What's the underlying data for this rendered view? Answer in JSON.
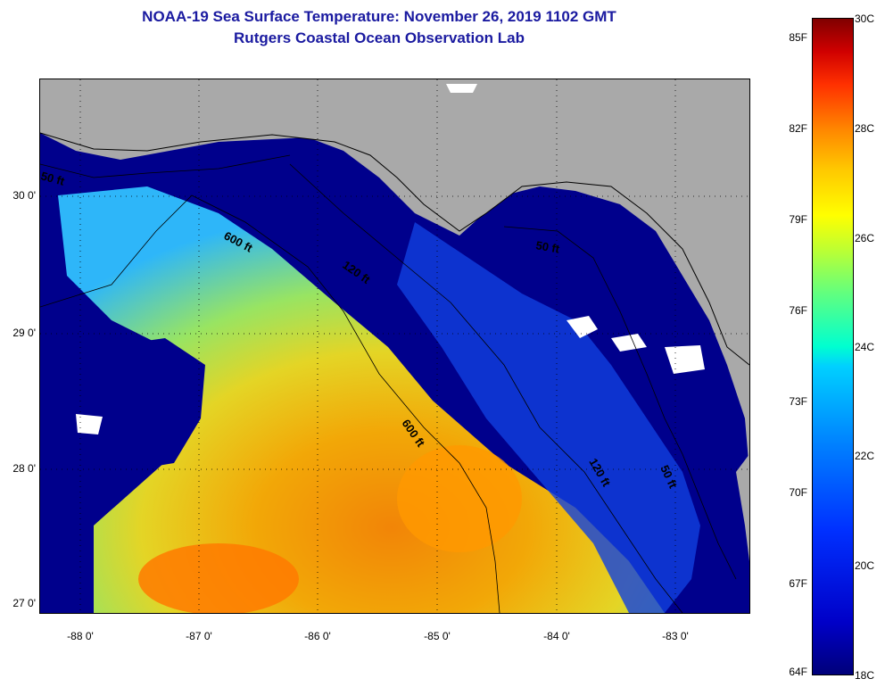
{
  "header": {
    "title": "NOAA-19 Sea Surface Temperature:  November 26, 2019 1102 GMT",
    "subtitle": "Rutgers Coastal Ocean Observation Lab"
  },
  "map": {
    "lat_labels": [
      "30 0'",
      "29 0'",
      "28 0'",
      "27 0'"
    ],
    "lon_labels": [
      "-88 0'",
      "-87 0'",
      "-86 0'",
      "-85 0'",
      "-84 0'",
      "-83 0'"
    ],
    "contour_labels": [
      "50 ft",
      "600 ft",
      "120 ft",
      "50 ft",
      "600 ft",
      "120 ft",
      "50 ft"
    ],
    "land_color": "#a9a9a9",
    "cloud_color": "#ffffff"
  },
  "colorbar": {
    "fahrenheit_labels": [
      "85F",
      "82F",
      "79F",
      "76F",
      "73F",
      "70F",
      "67F",
      "64F"
    ],
    "celsius_labels": [
      "30C",
      "28C",
      "26C",
      "24C",
      "22C",
      "20C",
      "18C"
    ]
  }
}
